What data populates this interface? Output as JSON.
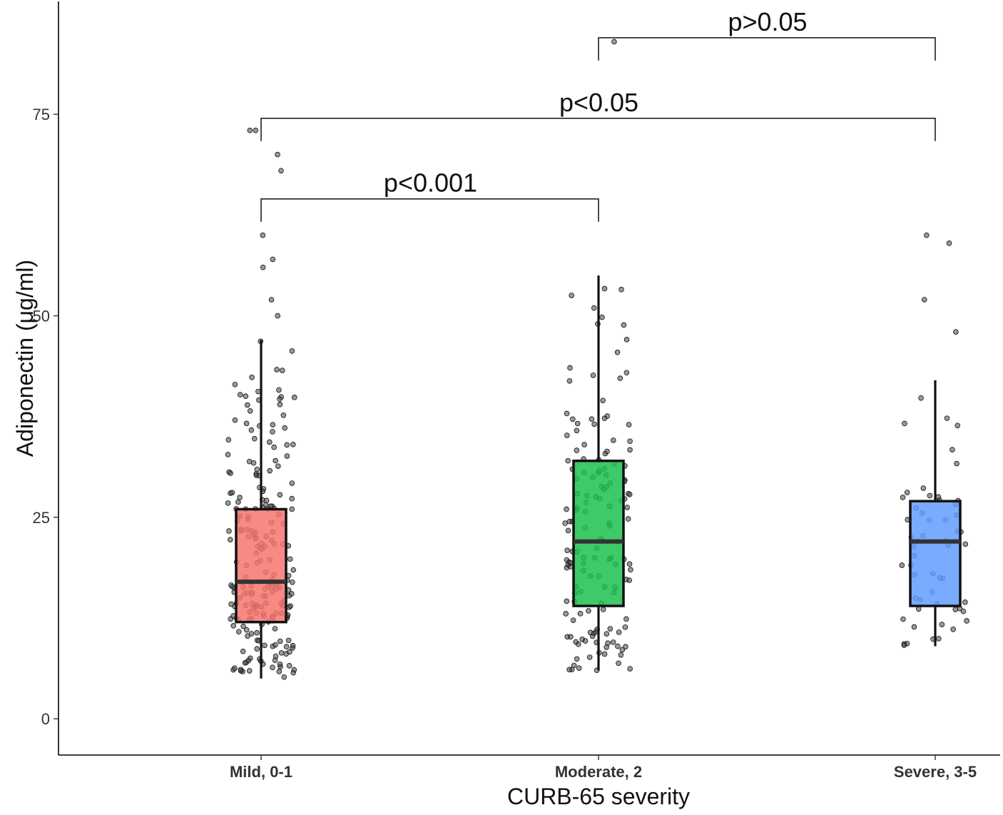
{
  "chart_data": {
    "type": "box",
    "xlabel": "CURB-65 severity",
    "ylabel": "Adiponectin (μg/ml)",
    "ylim": [
      -4.5,
      89
    ],
    "yticks": [
      0,
      25,
      50,
      75
    ],
    "categories": [
      "Mild, 0-1",
      "Moderate, 2",
      "Severe, 3-5"
    ],
    "series": [
      {
        "category": "Mild, 0-1",
        "color": "#F8766D",
        "whisker_low": 5,
        "q1": 12,
        "median": 17,
        "q3": 26,
        "whisker_high": 47,
        "outliers": [
          50,
          52,
          56,
          57,
          60,
          68,
          70,
          73,
          73
        ]
      },
      {
        "category": "Moderate, 2",
        "color": "#1DBF4E",
        "whisker_low": 6,
        "q1": 14,
        "median": 22,
        "q3": 32,
        "whisker_high": 55,
        "outliers": [
          84
        ]
      },
      {
        "category": "Severe, 3-5",
        "color": "#619CFF",
        "whisker_low": 9,
        "q1": 14,
        "median": 22,
        "q3": 27,
        "whisker_high": 42,
        "outliers": [
          48,
          52,
          59,
          60
        ]
      }
    ],
    "comparisons": [
      {
        "from": "Mild, 0-1",
        "to": "Moderate, 2",
        "label": "p<0.001",
        "y": 64.5
      },
      {
        "from": "Mild, 0-1",
        "to": "Severe, 3-5",
        "label": "p<0.05",
        "y": 74.5
      },
      {
        "from": "Moderate, 2",
        "to": "Severe, 3-5",
        "label": "p>0.05",
        "y": 84.5
      }
    ],
    "grid": false,
    "legend": "none"
  }
}
